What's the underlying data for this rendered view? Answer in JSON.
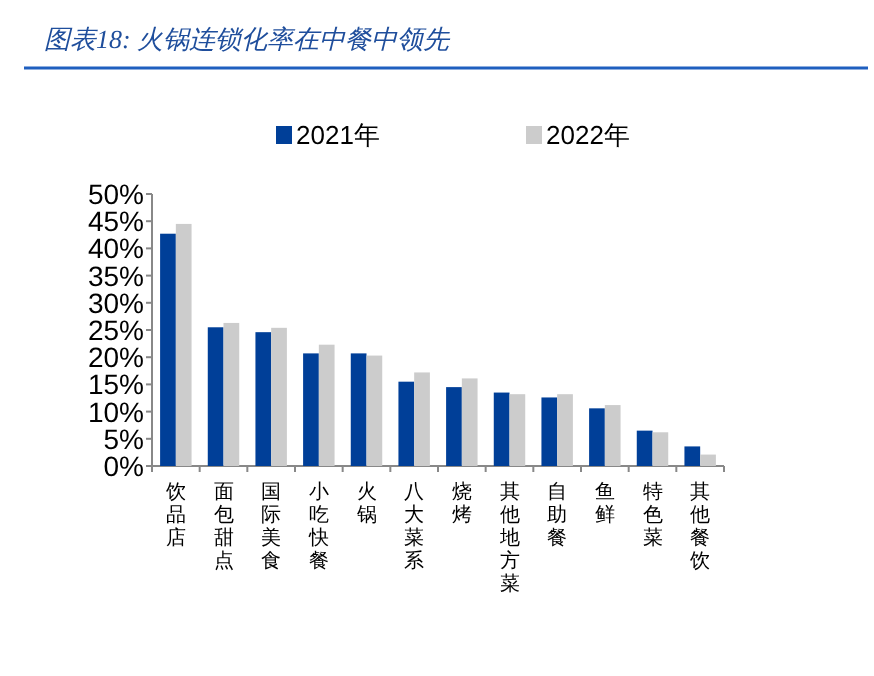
{
  "chart_data": {
    "type": "bar",
    "title": "图表18: 火锅连锁化率在中餐中领先",
    "categories": [
      "饮品店",
      "面包甜点",
      "国际美食",
      "小吃快餐",
      "火锅",
      "八大菜系",
      "烧烤",
      "其他地方菜",
      "自助餐",
      "鱼鲜",
      "特色菜",
      "其他餐饮"
    ],
    "series": [
      {
        "name": "2021年",
        "color": "#003f98",
        "values": [
          42.7,
          25.5,
          24.6,
          20.7,
          20.7,
          15.5,
          14.5,
          13.5,
          12.6,
          10.6,
          6.5,
          3.6
        ]
      },
      {
        "name": "2022年",
        "color": "#cccccc",
        "values": [
          44.5,
          26.3,
          25.4,
          22.3,
          20.3,
          17.2,
          16.1,
          13.2,
          13.2,
          11.2,
          6.2,
          2.1
        ]
      }
    ],
    "ylim": [
      0,
      50
    ],
    "yticks": [
      {
        "value": 0,
        "label": "0%"
      },
      {
        "value": 5,
        "label": "5%"
      },
      {
        "value": 10,
        "label": "10%"
      },
      {
        "value": 15,
        "label": "15%"
      },
      {
        "value": 20,
        "label": "20%"
      },
      {
        "value": 25,
        "label": "25%"
      },
      {
        "value": 30,
        "label": "30%"
      },
      {
        "value": 35,
        "label": "35%"
      },
      {
        "value": 40,
        "label": "40%"
      },
      {
        "value": 45,
        "label": "45%"
      },
      {
        "value": 50,
        "label": "50%"
      }
    ],
    "legend": "top",
    "grid": false
  }
}
